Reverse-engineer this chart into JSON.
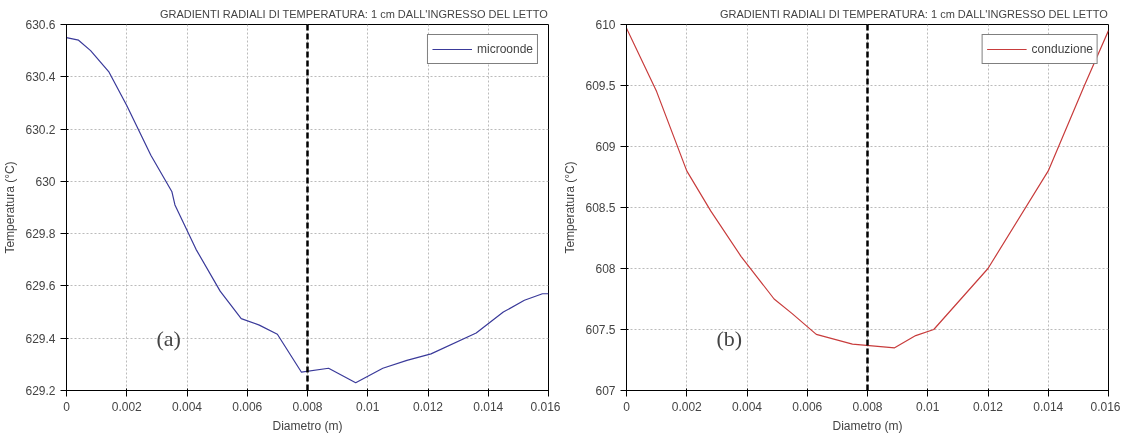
{
  "chart_data": [
    {
      "type": "line",
      "title": "GRADIENTI RADIALI DI TEMPERATURA: 1 cm DALL'INGRESSO DEL LETTO",
      "xlabel": "Diametro (m)",
      "ylabel": "Temperatura (°C)",
      "x": [
        0,
        0.0004,
        0.0008,
        0.0014,
        0.002,
        0.0028,
        0.0035,
        0.0036,
        0.0043,
        0.0051,
        0.0058,
        0.0064,
        0.007,
        0.0078,
        0.0087,
        0.0096,
        0.0105,
        0.0113,
        0.0121,
        0.0136,
        0.0145,
        0.0152,
        0.0158,
        0.016
      ],
      "series": [
        {
          "name": "microonde",
          "color": "#3a3a9a",
          "values": [
            630.55,
            630.54,
            630.5,
            630.42,
            630.29,
            630.1,
            629.96,
            629.91,
            629.74,
            629.58,
            629.475,
            629.45,
            629.415,
            629.27,
            629.285,
            629.23,
            629.285,
            629.315,
            629.34,
            629.42,
            629.5,
            629.545,
            629.57,
            629.57
          ]
        }
      ],
      "xlim": [
        0,
        0.016
      ],
      "xticks": [
        0,
        0.002,
        0.004,
        0.006,
        0.008,
        0.01,
        0.012,
        0.014,
        0.016
      ],
      "ylim": [
        629.2,
        630.6
      ],
      "yticks": [
        629.2,
        629.4,
        629.6,
        629.8,
        630,
        630.2,
        630.4,
        630.6
      ],
      "ref_lines": [
        {
          "axis": "x",
          "value": 0.008,
          "color": "#000000",
          "line_style": "dashed"
        }
      ],
      "annotations": [
        "(a)"
      ],
      "grid": true,
      "legend": "top right",
      "line_style": "solid",
      "marker": "none"
    },
    {
      "type": "line",
      "title": "GRADIENTI RADIALI DI TEMPERATURA: 1 cm DALL'INGRESSO DEL LETTO",
      "xlabel": "Diametro (m)",
      "ylabel": "Temperatura (°C)",
      "x": [
        0,
        0.001,
        0.002,
        0.0028,
        0.0038,
        0.0049,
        0.0055,
        0.0063,
        0.0075,
        0.0089,
        0.0096,
        0.0102,
        0.012,
        0.014,
        0.0152,
        0.016
      ],
      "series": [
        {
          "name": "conduzione",
          "color": "#c83c3c",
          "values": [
            609.97,
            609.45,
            608.8,
            608.47,
            608.1,
            607.75,
            607.63,
            607.46,
            607.38,
            607.35,
            607.45,
            607.5,
            608.0,
            608.8,
            609.5,
            609.95
          ]
        }
      ],
      "xlim": [
        0,
        0.016
      ],
      "xticks": [
        0,
        0.002,
        0.004,
        0.006,
        0.008,
        0.01,
        0.012,
        0.014,
        0.016
      ],
      "ylim": [
        607,
        610
      ],
      "yticks": [
        607,
        607.5,
        608,
        608.5,
        609,
        609.5,
        610
      ],
      "ref_lines": [
        {
          "axis": "x",
          "value": 0.008,
          "color": "#000000",
          "line_style": "dashed"
        }
      ],
      "annotations": [
        "(b)"
      ],
      "grid": true,
      "legend": "top right",
      "line_style": "solid",
      "marker": "none"
    }
  ]
}
